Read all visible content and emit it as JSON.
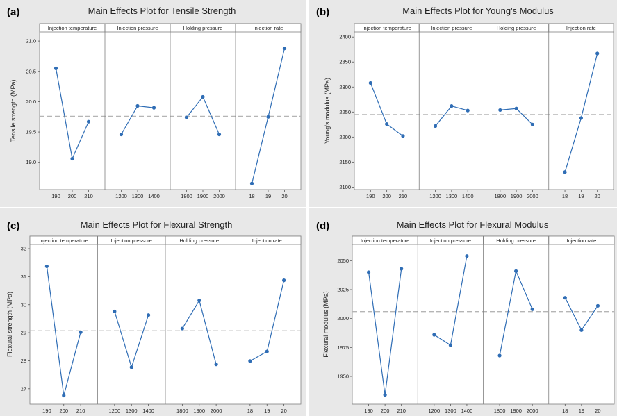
{
  "figure": {
    "colors": {
      "panel_background": "#e8e8e8",
      "plot_background": "#ffffff",
      "line": "#2f6db5",
      "mean_line": "#b5b5b5",
      "strip_border": "#7f7f7f"
    }
  },
  "chart_data": [
    {
      "type": "line",
      "panel_label": "(a)",
      "title": "Main Effects Plot for Tensile Strength",
      "ylabel": "Tensile strength (MPa)",
      "ylim": [
        18.55,
        21.15
      ],
      "yticks": [
        19.0,
        19.5,
        20.0,
        20.5,
        21.0
      ],
      "ytick_labels": [
        "19.0",
        "19.5",
        "20.0",
        "20.5",
        "21.0"
      ],
      "mean": 19.76,
      "factors": [
        {
          "name": "Injection temperature",
          "levels": [
            "190",
            "200",
            "210"
          ],
          "values": [
            20.55,
            19.06,
            19.67
          ]
        },
        {
          "name": "Injection pressure",
          "levels": [
            "1200",
            "1300",
            "1400"
          ],
          "values": [
            19.46,
            19.93,
            19.9
          ]
        },
        {
          "name": "Holding pressure",
          "levels": [
            "1800",
            "1900",
            "2000"
          ],
          "values": [
            19.74,
            20.08,
            19.46
          ]
        },
        {
          "name": "Injection rate",
          "levels": [
            "18",
            "19",
            "20"
          ],
          "values": [
            18.65,
            19.75,
            20.88
          ]
        }
      ]
    },
    {
      "type": "line",
      "panel_label": "(b)",
      "title": "Main Effects Plot for Young's Modulus",
      "ylabel": "Young's modulus (MPa)",
      "ylim": [
        2095,
        2410
      ],
      "yticks": [
        2100,
        2150,
        2200,
        2250,
        2300,
        2350,
        2400
      ],
      "ytick_labels": [
        "2100",
        "2150",
        "2200",
        "2250",
        "2300",
        "2350",
        "2400"
      ],
      "mean": 2245,
      "factors": [
        {
          "name": "Injection temperature",
          "levels": [
            "190",
            "200",
            "210"
          ],
          "values": [
            2308,
            2226,
            2202
          ]
        },
        {
          "name": "Injection pressure",
          "levels": [
            "1200",
            "1300",
            "1400"
          ],
          "values": [
            2222,
            2262,
            2253
          ]
        },
        {
          "name": "Holding pressure",
          "levels": [
            "1800",
            "1900",
            "2000"
          ],
          "values": [
            2254,
            2257,
            2225
          ]
        },
        {
          "name": "Injection rate",
          "levels": [
            "18",
            "19",
            "20"
          ],
          "values": [
            2130,
            2238,
            2367
          ]
        }
      ]
    },
    {
      "type": "line",
      "panel_label": "(c)",
      "title": "Main Effects Plot for Flexural Strength",
      "ylabel": "Flexural strength (MPa)",
      "ylim": [
        26.45,
        32.15
      ],
      "yticks": [
        27,
        28,
        29,
        30,
        31,
        32
      ],
      "ytick_labels": [
        "27",
        "28",
        "29",
        "30",
        "31",
        "32"
      ],
      "mean": 29.07,
      "factors": [
        {
          "name": "Injection temperature",
          "levels": [
            "190",
            "200",
            "210"
          ],
          "values": [
            31.37,
            26.76,
            29.02
          ]
        },
        {
          "name": "Injection pressure",
          "levels": [
            "1200",
            "1300",
            "1400"
          ],
          "values": [
            29.76,
            27.77,
            29.63
          ]
        },
        {
          "name": "Holding pressure",
          "levels": [
            "1800",
            "1900",
            "2000"
          ],
          "values": [
            29.15,
            30.15,
            27.87
          ]
        },
        {
          "name": "Injection rate",
          "levels": [
            "18",
            "19",
            "20"
          ],
          "values": [
            27.99,
            28.33,
            30.87
          ]
        }
      ]
    },
    {
      "type": "line",
      "panel_label": "(d)",
      "title": "Main Effects Plot for Flexural Modulus",
      "ylabel": "Flexural modulus (MPa)",
      "ylim": [
        1926,
        2064
      ],
      "yticks": [
        1950,
        1975,
        2000,
        2025,
        2050
      ],
      "ytick_labels": [
        "1950",
        "1975",
        "2000",
        "2025",
        "2050"
      ],
      "mean": 2006,
      "factors": [
        {
          "name": "Injection temperature",
          "levels": [
            "190",
            "200",
            "210"
          ],
          "values": [
            2040,
            1934,
            2043
          ]
        },
        {
          "name": "Injection pressure",
          "levels": [
            "1200",
            "1300",
            "1400"
          ],
          "values": [
            1986,
            1977,
            2054
          ]
        },
        {
          "name": "Holding pressure",
          "levels": [
            "1800",
            "1900",
            "2000"
          ],
          "values": [
            1968,
            2041,
            2008
          ]
        },
        {
          "name": "Injection rate",
          "levels": [
            "18",
            "19",
            "20"
          ],
          "values": [
            2018,
            1990,
            2011
          ]
        }
      ]
    }
  ]
}
